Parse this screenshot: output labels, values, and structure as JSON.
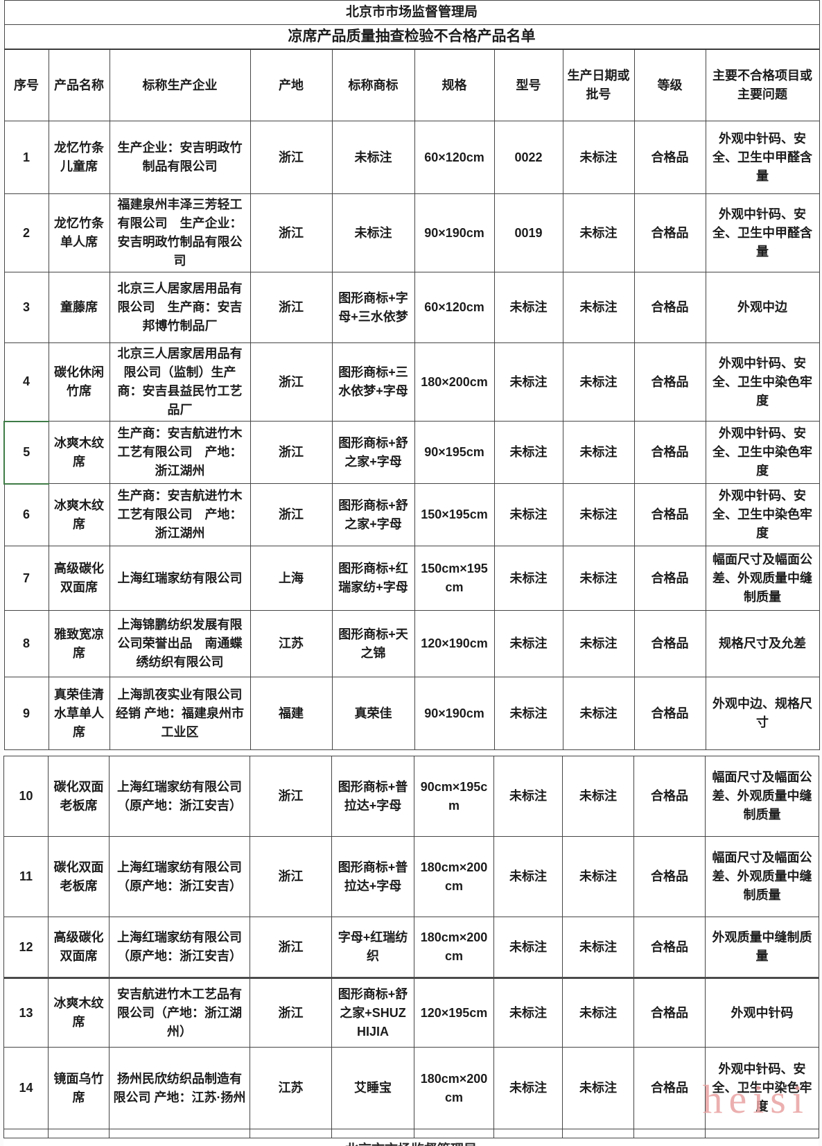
{
  "document": {
    "title_line1": "北京市市场监督管理局",
    "title_line2": "凉席产品质量抽查检验不合格产品名单",
    "bottom_clipped_text": "北京市市场监督管理局",
    "watermark": "heisi"
  },
  "colors": {
    "selected_cell_green": "#3e7b46",
    "watermark_pink": "#e9a2a2",
    "border_gray": "#454545",
    "text": "#1c1c1c",
    "background": "#ffffff"
  },
  "table": {
    "columns": [
      "序号",
      "产品名称",
      "标称生产企业",
      "产地",
      "标称商标",
      "规格",
      "型号",
      "生产日期或批号",
      "等级",
      "主要不合格项目或主要问题"
    ],
    "rows": [
      {
        "seq": "1",
        "name": "龙忆竹条儿童席",
        "manufacturer": "生产企业：安吉明政竹制品有限公司",
        "origin": "浙江",
        "trademark": "未标注",
        "spec": "60×120cm",
        "model": "0022",
        "batch": "未标注",
        "grade": "合格品",
        "issues": "外观中针码、安全、卫生中甲醛含量"
      },
      {
        "seq": "2",
        "name": "龙忆竹条单人席",
        "manufacturer": "福建泉州丰泽三芳轻工有限公司　生产企业：安吉明政竹制品有限公司",
        "origin": "浙江",
        "trademark": "未标注",
        "spec": "90×190cm",
        "model": "0019",
        "batch": "未标注",
        "grade": "合格品",
        "issues": "外观中针码、安全、卫生中甲醛含量"
      },
      {
        "seq": "3",
        "name": "童藤席",
        "manufacturer": "北京三人居家居用品有限公司　生产商：安吉邦博竹制品厂",
        "origin": "浙江",
        "trademark": "图形商标+字母+三水依梦",
        "spec": "60×120cm",
        "model": "未标注",
        "batch": "未标注",
        "grade": "合格品",
        "issues": "外观中边"
      },
      {
        "seq": "4",
        "name": "碳化休闲竹席",
        "manufacturer": "北京三人居家居用品有限公司（监制）生产商：安吉县益民竹工艺品厂",
        "origin": "浙江",
        "trademark": "图形商标+三水依梦+字母",
        "spec": "180×200cm",
        "model": "未标注",
        "batch": "未标注",
        "grade": "合格品",
        "issues": "外观中针码、安全、卫生中染色牢度"
      },
      {
        "seq": "5",
        "name": "冰爽木纹席",
        "manufacturer": "生产商：安吉航进竹木工艺有限公司　产地：浙江湖州",
        "origin": "浙江",
        "trademark": "图形商标+舒之家+字母",
        "spec": "90×195cm",
        "model": "未标注",
        "batch": "未标注",
        "grade": "合格品",
        "issues": "外观中针码、安全、卫生中染色牢度"
      },
      {
        "seq": "6",
        "name": "冰爽木纹席",
        "manufacturer": "生产商：安吉航进竹木工艺有限公司　产地：浙江湖州",
        "origin": "浙江",
        "trademark": "图形商标+舒之家+字母",
        "spec": "150×195cm",
        "model": "未标注",
        "batch": "未标注",
        "grade": "合格品",
        "issues": "外观中针码、安全、卫生中染色牢度"
      },
      {
        "seq": "7",
        "name": "高级碳化双面席",
        "manufacturer": "上海红瑞家纺有限公司",
        "origin": "上海",
        "trademark": "图形商标+红瑞家纺+字母",
        "spec": "150cm×195cm",
        "model": "未标注",
        "batch": "未标注",
        "grade": "合格品",
        "issues": "幅面尺寸及幅面公差、外观质量中缝制质量"
      },
      {
        "seq": "8",
        "name": "雅致宽凉席",
        "manufacturer": "上海锦鹏纺织发展有限公司荣誉出品　南通蝶绣纺织有限公司",
        "origin": "江苏",
        "trademark": "图形商标+天之锦",
        "spec": "120×190cm",
        "model": "未标注",
        "batch": "未标注",
        "grade": "合格品",
        "issues": "规格尺寸及允差"
      },
      {
        "seq": "9",
        "name": "真荣佳清水草单人席",
        "manufacturer": "上海凯夜实业有限公司经销 产地：福建泉州市工业区",
        "origin": "福建",
        "trademark": "真荣佳",
        "spec": "90×190cm",
        "model": "未标注",
        "batch": "未标注",
        "grade": "合格品",
        "issues": "外观中边、规格尺寸"
      },
      {
        "seq": "10",
        "name": "碳化双面老板席",
        "manufacturer": "上海红瑞家纺有限公司（原产地：浙江安吉）",
        "origin": "浙江",
        "trademark": "图形商标+普拉达+字母",
        "spec": "90cm×195cm",
        "model": "未标注",
        "batch": "未标注",
        "grade": "合格品",
        "issues": "幅面尺寸及幅面公差、外观质量中缝制质量"
      },
      {
        "seq": "11",
        "name": "碳化双面老板席",
        "manufacturer": "上海红瑞家纺有限公司（原产地：浙江安吉）",
        "origin": "浙江",
        "trademark": "图形商标+普拉达+字母",
        "spec": "180cm×200cm",
        "model": "未标注",
        "batch": "未标注",
        "grade": "合格品",
        "issues": "幅面尺寸及幅面公差、外观质量中缝制质量"
      },
      {
        "seq": "12",
        "name": "高级碳化双面席",
        "manufacturer": "上海红瑞家纺有限公司（原产地：浙江安吉）",
        "origin": "浙江",
        "trademark": "字母+红瑞纺织",
        "spec": "180cm×200cm",
        "model": "未标注",
        "batch": "未标注",
        "grade": "合格品",
        "issues": "外观质量中缝制质量"
      },
      {
        "seq": "13",
        "name": "冰爽木纹席",
        "manufacturer": "安吉航进竹木工艺品有限公司（产地：浙江湖州）",
        "origin": "浙江",
        "trademark": "图形商标+舒之家+SHUZHIJIA",
        "spec": "120×195cm",
        "model": "未标注",
        "batch": "未标注",
        "grade": "合格品",
        "issues": "外观中针码"
      },
      {
        "seq": "14",
        "name": "镜面乌竹席",
        "manufacturer": "扬州民欣纺织品制造有限公司 产地：江苏·扬州",
        "origin": "江苏",
        "trademark": "艾睡宝",
        "spec": "180cm×200cm",
        "model": "未标注",
        "batch": "未标注",
        "grade": "合格品",
        "issues": "外观中针码、安全、卫生中染色牢度"
      }
    ]
  }
}
